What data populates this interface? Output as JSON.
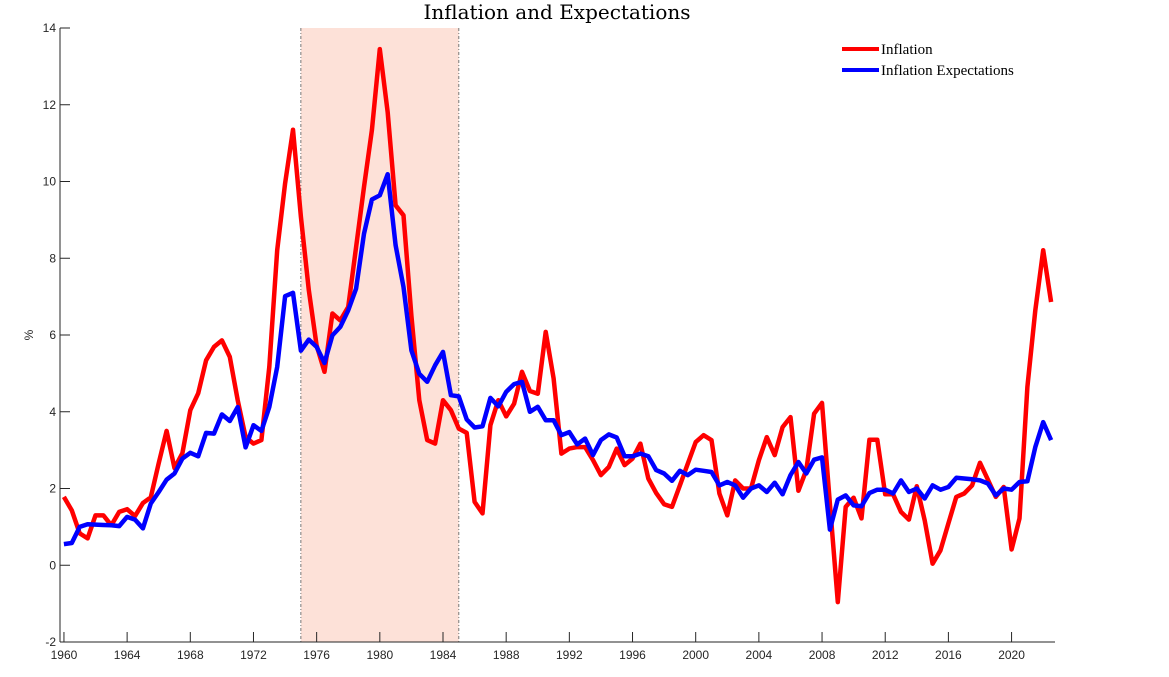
{
  "chart_data": {
    "type": "line",
    "title": "Inflation and Expectations",
    "xlabel": "",
    "ylabel": "%",
    "xlim": [
      1959.75,
      2022.75
    ],
    "ylim": [
      -2,
      14
    ],
    "xticks": [
      1960,
      1964,
      1968,
      1972,
      1976,
      1980,
      1984,
      1988,
      1992,
      1996,
      2000,
      2004,
      2008,
      2012,
      2016,
      2020
    ],
    "yticks": [
      -2,
      0,
      2,
      4,
      6,
      8,
      10,
      12,
      14
    ],
    "grid": false,
    "legend_position": "top-right",
    "shaded_region": {
      "x": [
        1975,
        1985
      ],
      "color": "#FDE1D8"
    },
    "x_start": 1960,
    "x_step": 0.5,
    "series": [
      {
        "name": "Inflation",
        "color": "#FF0000",
        "values": [
          1.78,
          1.43,
          0.83,
          0.7,
          1.3,
          1.3,
          1.04,
          1.39,
          1.46,
          1.28,
          1.62,
          1.77,
          2.66,
          3.5,
          2.53,
          2.92,
          4.04,
          4.48,
          5.34,
          5.69,
          5.86,
          5.43,
          4.3,
          3.34,
          3.17,
          3.26,
          5.17,
          8.21,
          9.95,
          11.35,
          9.08,
          7.17,
          5.73,
          5.04,
          6.56,
          6.38,
          6.73,
          8.29,
          9.86,
          11.34,
          13.45,
          11.8,
          9.38,
          9.12,
          6.5,
          4.3,
          3.26,
          3.17,
          4.3,
          4.04,
          3.56,
          3.45,
          1.65,
          1.35,
          3.65,
          4.3,
          3.88,
          4.21,
          5.04,
          4.54,
          4.47,
          6.08,
          4.87,
          2.91,
          3.04,
          3.08,
          3.08,
          2.74,
          2.35,
          2.56,
          3.04,
          2.61,
          2.78,
          3.17,
          2.26,
          1.88,
          1.59,
          1.52,
          2.08,
          2.65,
          3.21,
          3.39,
          3.26,
          1.87,
          1.3,
          2.21,
          2.0,
          2.0,
          2.74,
          3.34,
          2.87,
          3.6,
          3.86,
          1.94,
          2.48,
          3.95,
          4.23,
          1.6,
          -0.96,
          1.52,
          1.76,
          1.22,
          3.27,
          3.27,
          1.85,
          1.85,
          1.39,
          1.19,
          2.06,
          1.17,
          0.04,
          0.39,
          1.09,
          1.78,
          1.87,
          2.08,
          2.67,
          2.23,
          1.78,
          2.04,
          0.41,
          1.22,
          4.65,
          6.64,
          8.21,
          6.86
        ]
      },
      {
        "name": "Inflation Expectations",
        "color": "#0000FF",
        "values": [
          0.55,
          0.58,
          1.0,
          1.07,
          1.06,
          1.05,
          1.04,
          1.02,
          1.26,
          1.19,
          0.96,
          1.61,
          1.91,
          2.23,
          2.39,
          2.78,
          2.93,
          2.84,
          3.45,
          3.43,
          3.93,
          3.76,
          4.12,
          3.07,
          3.65,
          3.5,
          4.12,
          5.17,
          7.01,
          7.1,
          5.59,
          5.88,
          5.69,
          5.27,
          5.99,
          6.21,
          6.64,
          7.21,
          8.64,
          9.53,
          9.64,
          10.19,
          8.34,
          7.25,
          5.6,
          4.99,
          4.78,
          5.21,
          5.56,
          4.43,
          4.4,
          3.8,
          3.59,
          3.62,
          4.36,
          4.14,
          4.52,
          4.72,
          4.78,
          4.0,
          4.13,
          3.78,
          3.78,
          3.39,
          3.47,
          3.15,
          3.3,
          2.87,
          3.26,
          3.41,
          3.33,
          2.84,
          2.84,
          2.91,
          2.84,
          2.48,
          2.39,
          2.2,
          2.46,
          2.35,
          2.49,
          2.46,
          2.43,
          2.08,
          2.17,
          2.08,
          1.76,
          2.0,
          2.08,
          1.91,
          2.15,
          1.85,
          2.35,
          2.69,
          2.39,
          2.75,
          2.81,
          0.93,
          1.71,
          1.82,
          1.56,
          1.54,
          1.88,
          1.97,
          1.97,
          1.87,
          2.21,
          1.91,
          2.0,
          1.74,
          2.08,
          1.97,
          2.04,
          2.28,
          2.26,
          2.24,
          2.21,
          2.13,
          1.82,
          2.0,
          1.97,
          2.17,
          2.19,
          3.08,
          3.73,
          3.26
        ]
      }
    ]
  }
}
